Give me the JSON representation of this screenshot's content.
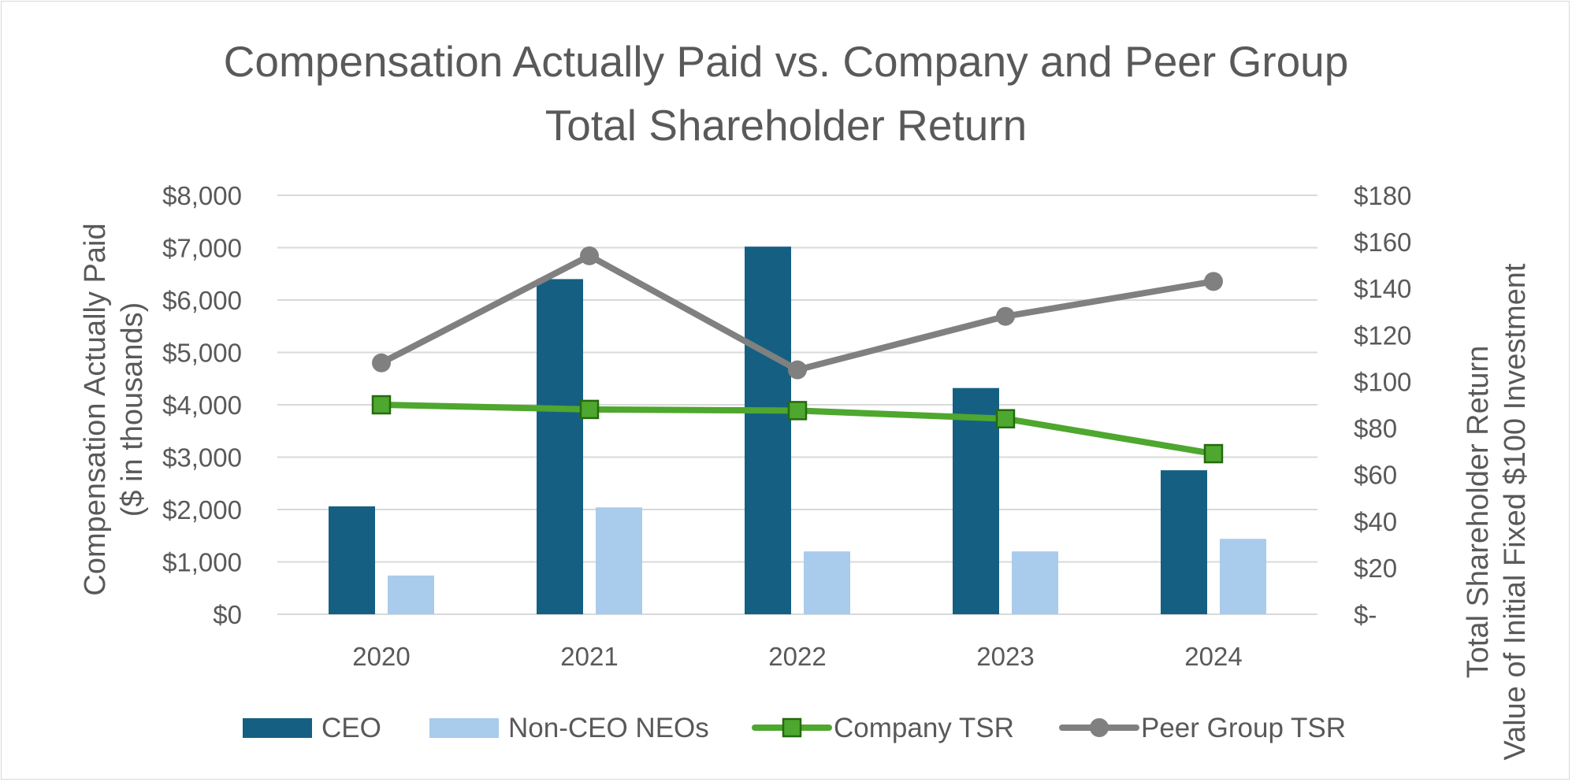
{
  "chart_data": {
    "type": "bar",
    "title_lines": [
      "Compensation Actually Paid vs. Company and Peer Group",
      "Total Shareholder Return"
    ],
    "categories": [
      "2020",
      "2021",
      "2022",
      "2023",
      "2024"
    ],
    "series": [
      {
        "name": "CEO",
        "kind": "bar",
        "axis": "left",
        "color": "#156082",
        "values": [
          2060,
          6400,
          7020,
          4320,
          2750
        ]
      },
      {
        "name": "Non-CEO NEOs",
        "kind": "bar",
        "axis": "left",
        "color": "#a9cbec",
        "values": [
          740,
          2040,
          1200,
          1200,
          1440
        ]
      },
      {
        "name": "Company TSR",
        "kind": "line",
        "marker": "square",
        "axis": "right",
        "color": "#4ea72e",
        "values": [
          90,
          88,
          87.5,
          84,
          69
        ]
      },
      {
        "name": "Peer Group TSR",
        "kind": "line",
        "marker": "circle",
        "axis": "right",
        "color": "#808080",
        "values": [
          108,
          154,
          105,
          128,
          143
        ]
      }
    ],
    "y_left": {
      "title_lines": [
        "Compensation Actually Paid",
        "($ in thousands)"
      ],
      "range": [
        0,
        8000
      ],
      "ticks": [
        0,
        1000,
        2000,
        3000,
        4000,
        5000,
        6000,
        7000,
        8000
      ],
      "tick_labels": [
        "$0",
        "$1,000",
        "$2,000",
        "$3,000",
        "$4,000",
        "$5,000",
        "$6,000",
        "$7,000",
        "$8,000"
      ]
    },
    "y_right": {
      "title_lines": [
        "Total Shareholder Return",
        "Value of Initial Fixed $100 Investment"
      ],
      "range": [
        0,
        180
      ],
      "ticks": [
        0,
        20,
        40,
        60,
        80,
        100,
        120,
        140,
        160,
        180
      ],
      "tick_labels": [
        "$-",
        "$20",
        "$40",
        "$60",
        "$80",
        "$100",
        "$120",
        "$140",
        "$160",
        "$180"
      ]
    },
    "gridlines": true,
    "legend_position": "bottom"
  }
}
